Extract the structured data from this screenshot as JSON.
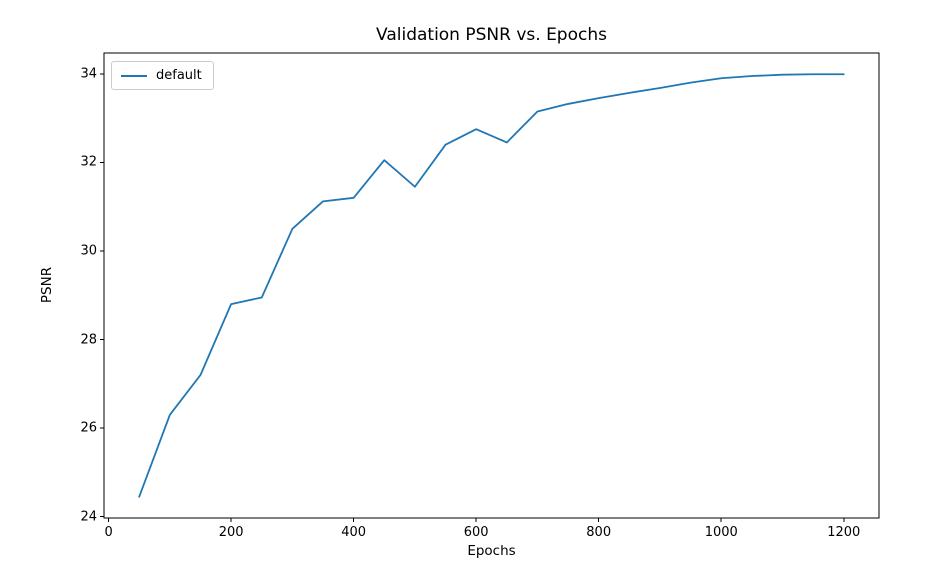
{
  "chart_data": {
    "type": "line",
    "title": "Validation PSNR vs. Epochs",
    "xlabel": "Epochs",
    "ylabel": "PSNR",
    "legend_position": "upper left",
    "grid": false,
    "line_color": "#1f77b4",
    "background_color": "#ffffff",
    "axis_color": "#000000",
    "xlim": [
      -7.5,
      1257.5
    ],
    "ylim": [
      23.97,
      34.47
    ],
    "xticks": [
      0,
      200,
      400,
      600,
      800,
      1000,
      1200
    ],
    "yticks": [
      24,
      26,
      28,
      30,
      32,
      34
    ],
    "series": [
      {
        "name": "default",
        "x": [
          50,
          100,
          150,
          200,
          250,
          300,
          350,
          400,
          450,
          500,
          550,
          600,
          650,
          700,
          750,
          800,
          850,
          900,
          950,
          1000,
          1050,
          1100,
          1150,
          1200
        ],
        "y": [
          24.45,
          26.3,
          27.2,
          28.8,
          28.95,
          30.5,
          31.12,
          31.2,
          32.05,
          31.45,
          32.4,
          32.75,
          32.45,
          33.15,
          33.32,
          33.45,
          33.57,
          33.68,
          33.8,
          33.9,
          33.95,
          33.98,
          33.99,
          33.99
        ]
      }
    ]
  }
}
